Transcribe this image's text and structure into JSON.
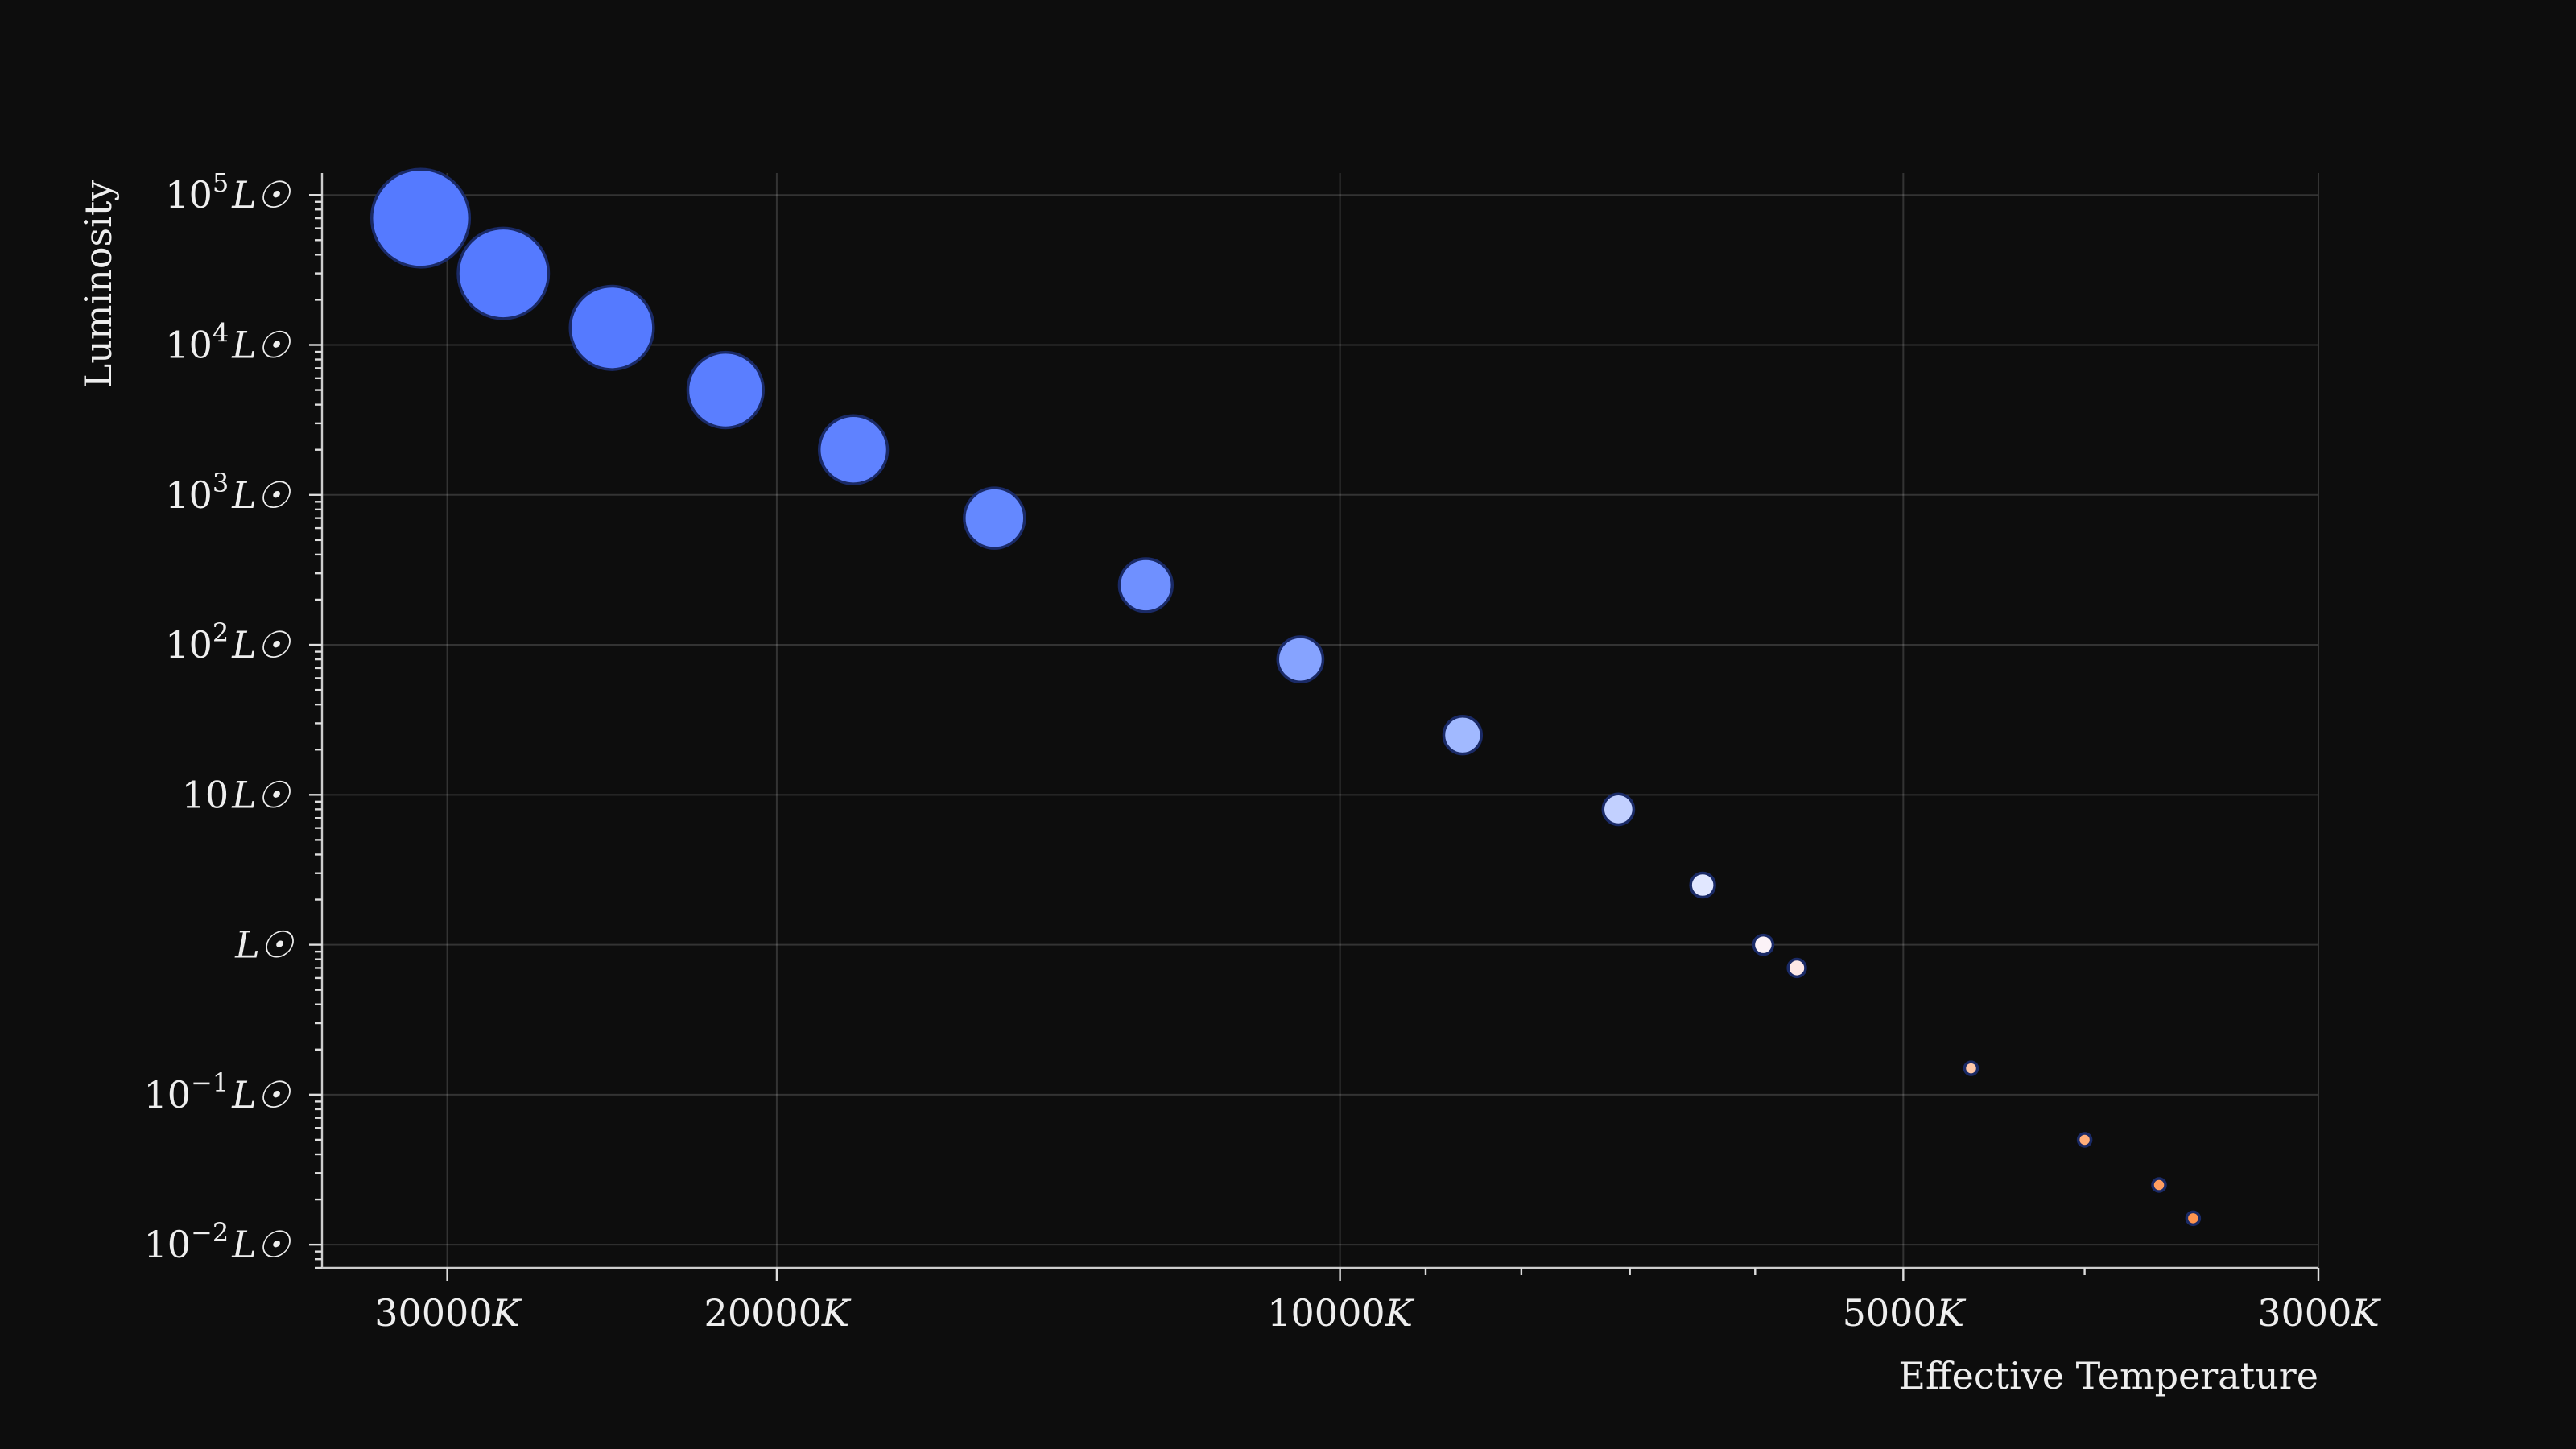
{
  "chart_data": {
    "type": "scatter",
    "title": "",
    "xlabel": "Effective Temperature",
    "ylabel": "Luminosity",
    "x_scale": "log",
    "x_inverted": true,
    "y_scale": "log",
    "xlim": [
      35000,
      3000
    ],
    "ylim": [
      0.007,
      140000
    ],
    "grid": true,
    "x_ticks": [
      {
        "value": 30000,
        "label": "30000",
        "unit": "K"
      },
      {
        "value": 20000,
        "label": "20000",
        "unit": "K"
      },
      {
        "value": 10000,
        "label": "10000",
        "unit": "K"
      },
      {
        "value": 5000,
        "label": "5000",
        "unit": "K"
      },
      {
        "value": 3000,
        "label": "3000",
        "unit": "K"
      }
    ],
    "x_minor_ticks": [
      9000,
      8000,
      7000,
      6000,
      4000
    ],
    "y_ticks": [
      {
        "value": 100000,
        "base": "10",
        "exp": "5",
        "unit": "L☉"
      },
      {
        "value": 10000,
        "base": "10",
        "exp": "4",
        "unit": "L☉"
      },
      {
        "value": 1000,
        "base": "10",
        "exp": "3",
        "unit": "L☉"
      },
      {
        "value": 100,
        "base": "10",
        "exp": "2",
        "unit": "L☉"
      },
      {
        "value": 10,
        "base": "10",
        "exp": "",
        "unit": "L☉"
      },
      {
        "value": 1,
        "base": "",
        "exp": "",
        "unit": "L☉"
      },
      {
        "value": 0.1,
        "base": "10",
        "exp": "−1",
        "unit": "L☉"
      },
      {
        "value": 0.01,
        "base": "10",
        "exp": "−2",
        "unit": "L☉"
      }
    ],
    "points": [
      {
        "x": 31000,
        "y": 70000,
        "color": "#557aff"
      },
      {
        "x": 28000,
        "y": 30000,
        "color": "#557aff"
      },
      {
        "x": 24500,
        "y": 13000,
        "color": "#557aff"
      },
      {
        "x": 21300,
        "y": 5000,
        "color": "#5a7eff"
      },
      {
        "x": 18200,
        "y": 2000,
        "color": "#5f82ff"
      },
      {
        "x": 15300,
        "y": 700,
        "color": "#6488ff"
      },
      {
        "x": 12700,
        "y": 250,
        "color": "#6f90ff"
      },
      {
        "x": 10500,
        "y": 80,
        "color": "#86a3ff"
      },
      {
        "x": 8600,
        "y": 25,
        "color": "#a1b9ff"
      },
      {
        "x": 7100,
        "y": 8,
        "color": "#c2d0ff"
      },
      {
        "x": 6400,
        "y": 2.5,
        "color": "#e1e7ff"
      },
      {
        "x": 5940,
        "y": 1.0,
        "color": "#fbf2f7"
      },
      {
        "x": 5700,
        "y": 0.7,
        "color": "#fde8e6"
      },
      {
        "x": 4600,
        "y": 0.15,
        "color": "#ffc8a8"
      },
      {
        "x": 4000,
        "y": 0.05,
        "color": "#ffae7a"
      },
      {
        "x": 3650,
        "y": 0.025,
        "color": "#ff9e60"
      },
      {
        "x": 3500,
        "y": 0.015,
        "color": "#ff9550"
      }
    ]
  }
}
